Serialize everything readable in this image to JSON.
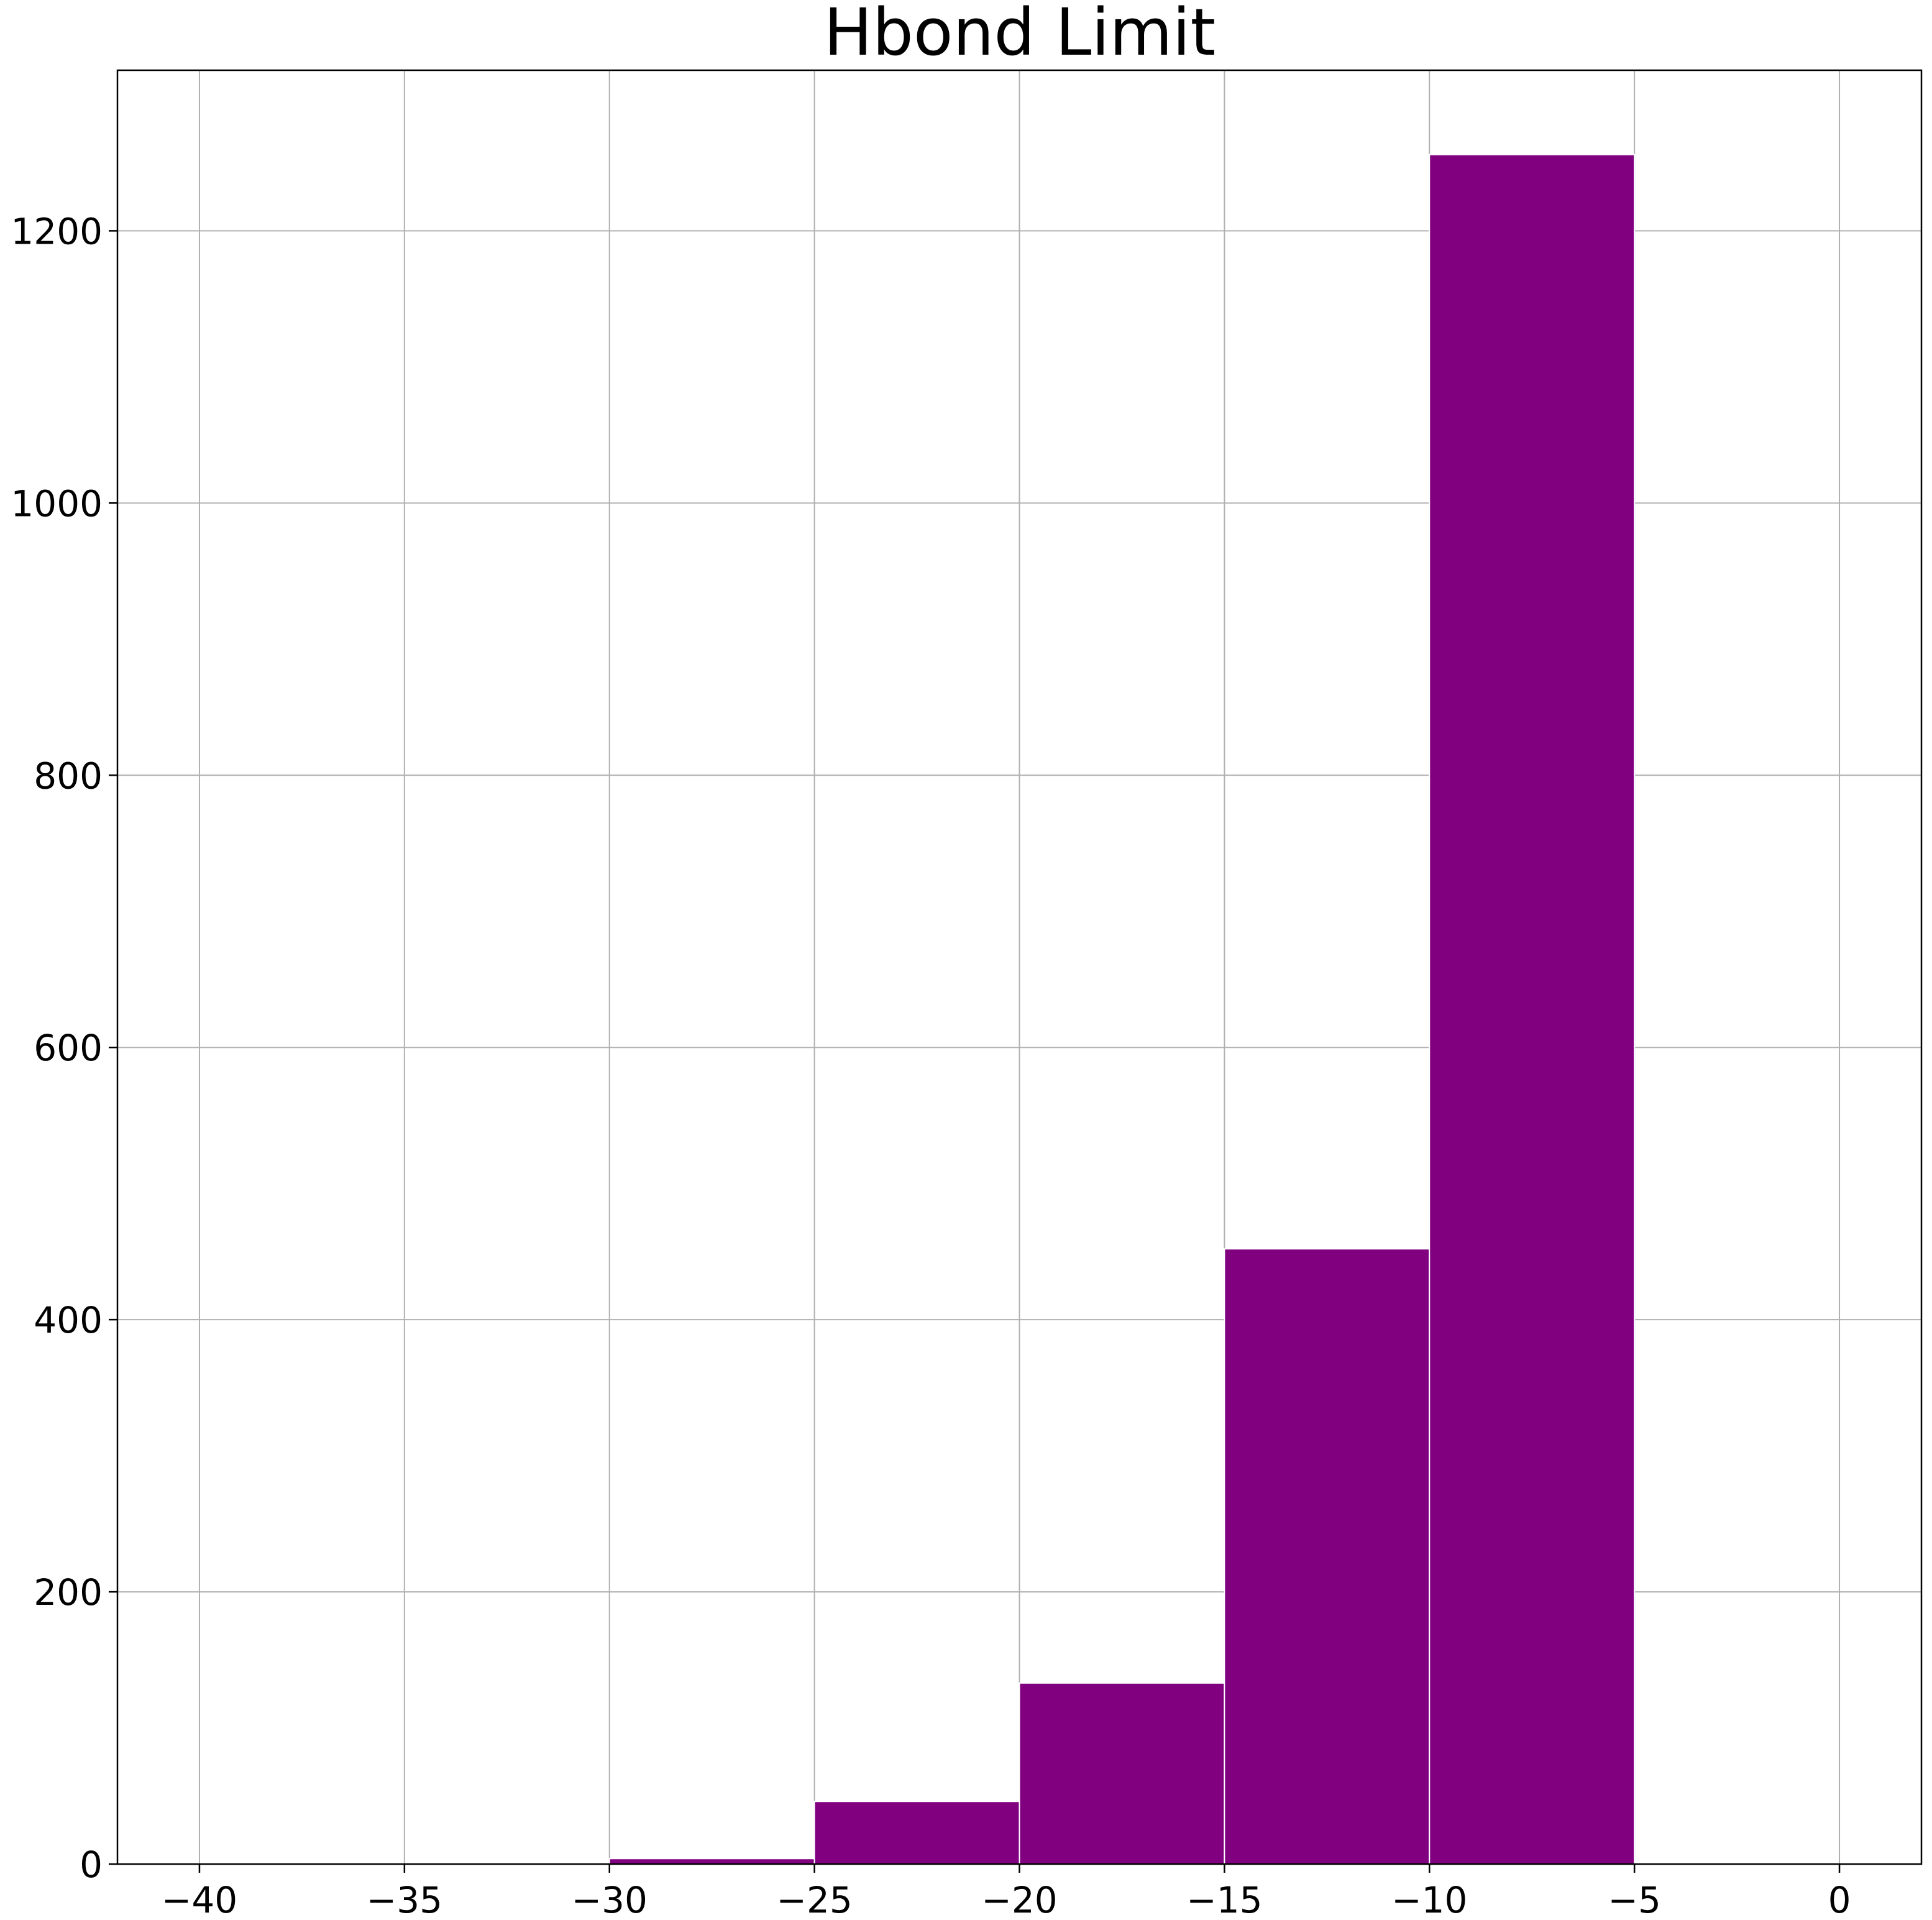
{
  "chart_data": {
    "type": "bar",
    "subtype": "histogram",
    "title": "Hbond Limit",
    "xlabel": "",
    "ylabel": "",
    "xlim": [
      -42,
      2
    ],
    "ylim": [
      0,
      1318
    ],
    "grid": true,
    "bar_color": "#800080",
    "bins": [
      {
        "x0": -30,
        "x1": -25,
        "count": 4
      },
      {
        "x0": -25,
        "x1": -20,
        "count": 46
      },
      {
        "x0": -20,
        "x1": -15,
        "count": 133
      },
      {
        "x0": -15,
        "x1": -10,
        "count": 452
      },
      {
        "x0": -10,
        "x1": -5,
        "count": 1256
      }
    ],
    "x_ticks": [
      {
        "value": -40,
        "label": "−40"
      },
      {
        "value": -35,
        "label": "−35"
      },
      {
        "value": -30,
        "label": "−30"
      },
      {
        "value": -25,
        "label": "−25"
      },
      {
        "value": -20,
        "label": "−20"
      },
      {
        "value": -15,
        "label": "−15"
      },
      {
        "value": -10,
        "label": "−10"
      },
      {
        "value": -5,
        "label": "−5"
      },
      {
        "value": 0,
        "label": "0"
      }
    ],
    "y_ticks": [
      {
        "value": 0,
        "label": "0"
      },
      {
        "value": 200,
        "label": "200"
      },
      {
        "value": 400,
        "label": "400"
      },
      {
        "value": 600,
        "label": "600"
      },
      {
        "value": 800,
        "label": "800"
      },
      {
        "value": 1000,
        "label": "1000"
      },
      {
        "value": 1200,
        "label": "1200"
      }
    ]
  }
}
